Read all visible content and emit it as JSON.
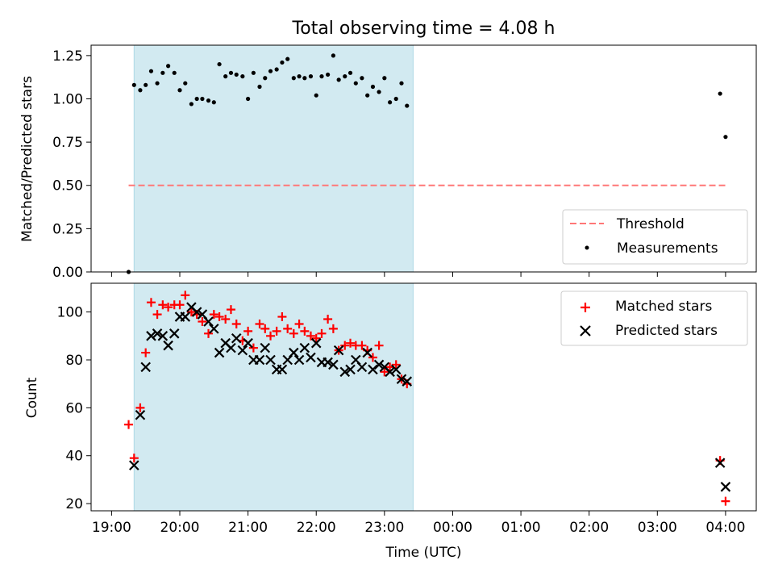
{
  "title": "Total observing time = 4.08 h",
  "x_tick_labels": [
    "19:00",
    "20:00",
    "21:00",
    "22:00",
    "23:00",
    "00:00",
    "01:00",
    "02:00",
    "03:00",
    "04:00"
  ],
  "xlabel": "Time (UTC)",
  "colors": {
    "span": "#add8e6",
    "threshold": "#ff7777",
    "measurements": "#000000",
    "matched": "#ff0000",
    "predicted": "#000000"
  },
  "chart_data": [
    {
      "type": "scatter",
      "ylabel": "Matched/Predicted stars",
      "x_unit": "hours since 19:00 UTC",
      "xlim": [
        -0.3,
        9.45
      ],
      "ylim": [
        0,
        1.31
      ],
      "y_tick_labels": [
        "0.00",
        "0.25",
        "0.50",
        "0.75",
        "1.00",
        "1.25"
      ],
      "y_ticks": [
        0,
        0.25,
        0.5,
        0.75,
        1.0,
        1.25
      ],
      "shaded_span": [
        0.33,
        4.42
      ],
      "legend_position": "lower right",
      "series": [
        {
          "name": "Threshold",
          "kind": "dashed-line",
          "x": [
            0.25,
            9.0
          ],
          "y": [
            0.5,
            0.5
          ]
        },
        {
          "name": "Measurements",
          "kind": "dot",
          "x": [
            0.25,
            0.33,
            0.42,
            0.5,
            0.58,
            0.67,
            0.75,
            0.83,
            0.92,
            1.0,
            1.08,
            1.17,
            1.25,
            1.33,
            1.42,
            1.5,
            1.58,
            1.67,
            1.75,
            1.83,
            1.92,
            2.0,
            2.08,
            2.17,
            2.25,
            2.33,
            2.42,
            2.5,
            2.58,
            2.67,
            2.75,
            2.83,
            2.92,
            3.0,
            3.08,
            3.17,
            3.25,
            3.33,
            3.42,
            3.5,
            3.58,
            3.67,
            3.75,
            3.83,
            3.92,
            4.0,
            4.08,
            4.17,
            4.25,
            4.33,
            8.92,
            9.0
          ],
          "y": [
            0.0,
            1.08,
            1.05,
            1.08,
            1.16,
            1.09,
            1.15,
            1.19,
            1.15,
            1.05,
            1.09,
            0.97,
            1.0,
            1.0,
            0.99,
            0.98,
            1.2,
            1.13,
            1.15,
            1.14,
            1.13,
            1.0,
            1.15,
            1.07,
            1.12,
            1.16,
            1.17,
            1.21,
            1.23,
            1.12,
            1.13,
            1.12,
            1.13,
            1.02,
            1.13,
            1.14,
            1.25,
            1.11,
            1.13,
            1.15,
            1.09,
            1.12,
            1.02,
            1.07,
            1.04,
            1.12,
            0.98,
            1.0,
            1.09,
            0.96,
            1.03,
            0.78
          ]
        }
      ]
    },
    {
      "type": "scatter",
      "ylabel": "Count",
      "x_unit": "hours since 19:00 UTC",
      "xlim": [
        -0.3,
        9.45
      ],
      "ylim": [
        17,
        112
      ],
      "y_tick_labels": [
        "20",
        "40",
        "60",
        "80",
        "100"
      ],
      "y_ticks": [
        20,
        40,
        60,
        80,
        100
      ],
      "shaded_span": [
        0.33,
        4.42
      ],
      "legend_position": "upper right",
      "series": [
        {
          "name": "Matched stars",
          "marker": "plus",
          "x": [
            0.25,
            0.33,
            0.42,
            0.5,
            0.58,
            0.67,
            0.75,
            0.83,
            0.92,
            1.0,
            1.08,
            1.17,
            1.25,
            1.33,
            1.42,
            1.5,
            1.58,
            1.67,
            1.75,
            1.83,
            1.92,
            2.0,
            2.08,
            2.17,
            2.25,
            2.33,
            2.42,
            2.5,
            2.58,
            2.67,
            2.75,
            2.83,
            2.92,
            3.0,
            3.08,
            3.17,
            3.25,
            3.33,
            3.42,
            3.5,
            3.58,
            3.67,
            3.75,
            3.83,
            3.92,
            4.0,
            4.08,
            4.17,
            4.25,
            4.33,
            8.92,
            9.0
          ],
          "y": [
            53,
            39,
            60,
            83,
            104,
            99,
            103,
            102,
            103,
            103,
            107,
            100,
            99,
            96,
            91,
            99,
            98,
            97,
            101,
            95,
            88,
            92,
            85,
            95,
            93,
            90,
            92,
            98,
            93,
            91,
            95,
            92,
            90,
            89,
            91,
            97,
            93,
            84,
            86,
            87,
            86,
            86,
            84,
            81,
            86,
            75,
            77,
            78,
            72,
            70,
            38,
            21
          ]
        },
        {
          "name": "Predicted stars",
          "marker": "x",
          "x": [
            0.33,
            0.42,
            0.5,
            0.58,
            0.67,
            0.75,
            0.83,
            0.92,
            1.0,
            1.08,
            1.17,
            1.25,
            1.33,
            1.42,
            1.5,
            1.58,
            1.67,
            1.75,
            1.83,
            1.92,
            2.0,
            2.08,
            2.17,
            2.25,
            2.33,
            2.42,
            2.5,
            2.58,
            2.67,
            2.75,
            2.83,
            2.92,
            3.0,
            3.08,
            3.17,
            3.25,
            3.33,
            3.42,
            3.5,
            3.58,
            3.67,
            3.75,
            3.83,
            3.92,
            4.0,
            4.08,
            4.17,
            4.25,
            4.33,
            8.92,
            9.0
          ],
          "y": [
            36,
            57,
            77,
            90,
            91,
            90,
            86,
            91,
            98,
            98,
            102,
            100,
            99,
            96,
            93,
            83,
            87,
            85,
            89,
            84,
            87,
            80,
            80,
            85,
            80,
            76,
            76,
            80,
            83,
            80,
            85,
            81,
            87,
            79,
            79,
            78,
            84,
            75,
            76,
            80,
            77,
            83,
            76,
            78,
            77,
            75,
            76,
            72,
            71,
            37,
            27
          ]
        }
      ]
    }
  ]
}
